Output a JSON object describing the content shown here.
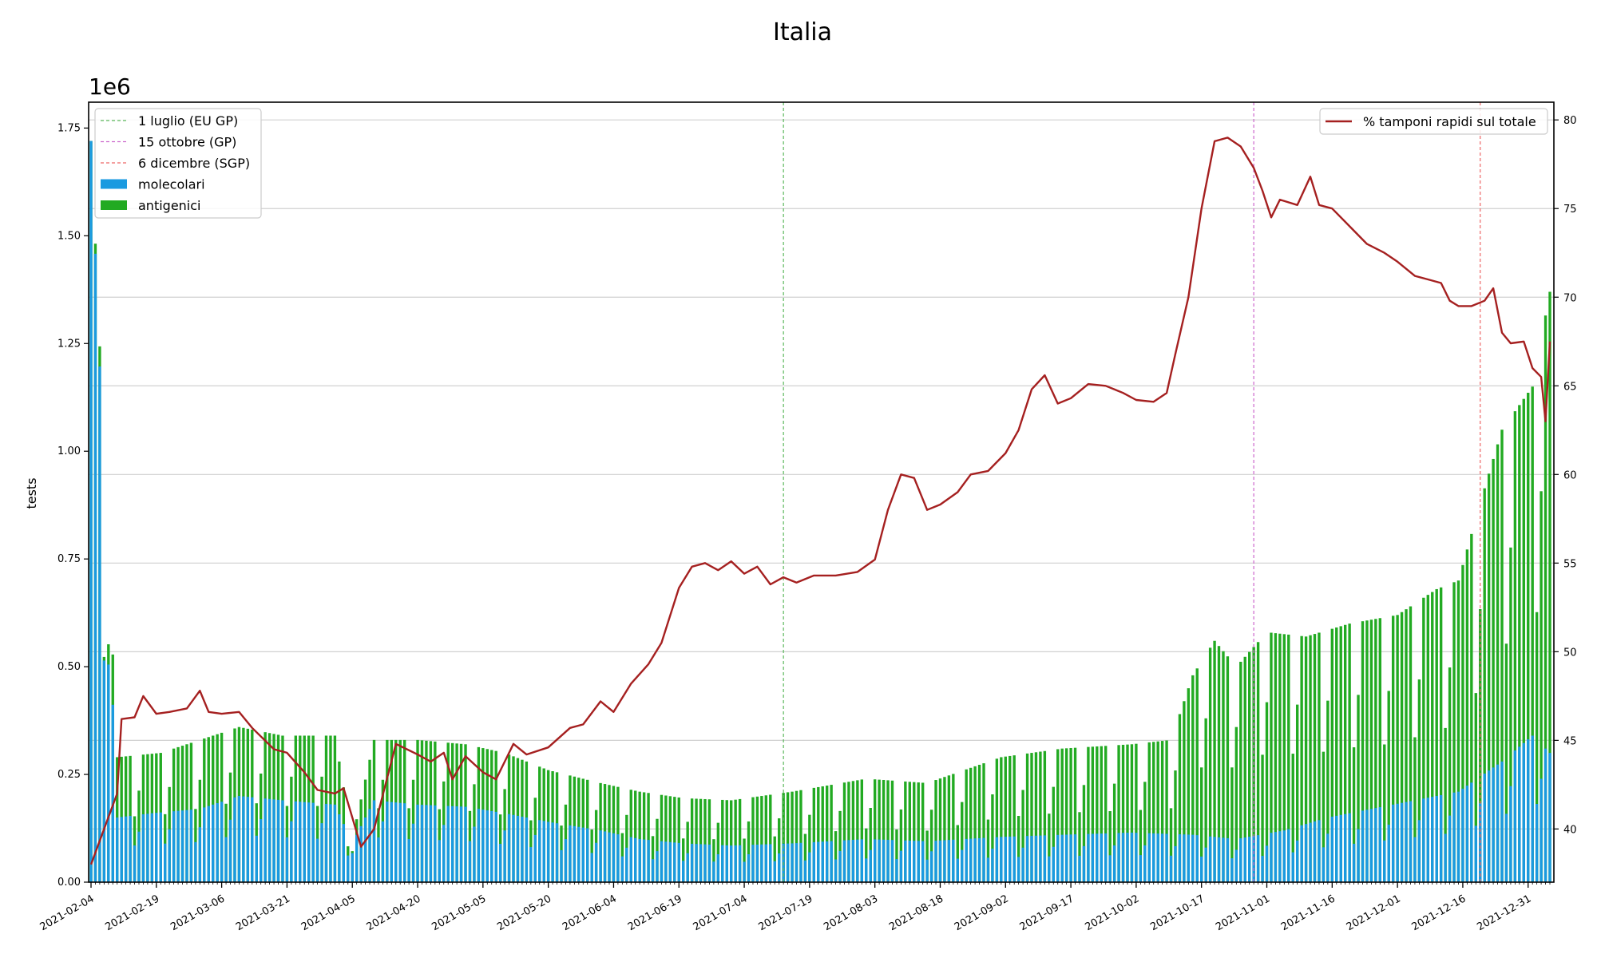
{
  "chart_data": {
    "type": "bar",
    "title": "Italia",
    "ylabel": "tests",
    "y_offset_text": "1e6",
    "ylim": [
      0,
      1810000
    ],
    "y_ticks": [
      0,
      250000,
      500000,
      750000,
      1000000,
      1250000,
      1500000,
      1750000
    ],
    "y_tick_labels": [
      "0.00",
      "0.25",
      "0.50",
      "0.75",
      "1.00",
      "1.25",
      "1.50",
      "1.75"
    ],
    "y2lim": [
      37,
      81
    ],
    "y2_ticks": [
      40,
      45,
      50,
      55,
      60,
      65,
      70,
      75,
      80
    ],
    "y2_tick_labels": [
      "40",
      "45",
      "50",
      "55",
      "60",
      "65",
      "70",
      "75",
      "80"
    ],
    "x_start": "2021-02-04",
    "x_end": "2022-01-05",
    "x_tick_labels": [
      "2021-02-04",
      "2021-02-19",
      "2021-03-06",
      "2021-03-21",
      "2021-04-05",
      "2021-04-20",
      "2021-05-05",
      "2021-05-20",
      "2021-06-04",
      "2021-06-19",
      "2021-07-04",
      "2021-07-19",
      "2021-08-03",
      "2021-08-18",
      "2021-09-02",
      "2021-09-17",
      "2021-10-02",
      "2021-10-17",
      "2021-11-01",
      "2021-11-16",
      "2021-12-01",
      "2021-12-16",
      "2021-12-31"
    ],
    "grid": true,
    "left_legend_position": "upper-left",
    "right_legend_position": "upper-right",
    "vlines": [
      {
        "label": "1 luglio (EU GP)",
        "date": "2021-07-13",
        "color": "#5cb85c"
      },
      {
        "label": "15 ottobre (GP)",
        "date": "2021-10-29",
        "color": "#cc66cc"
      },
      {
        "label": "6 dicembre (SGP)",
        "date": "2021-12-20",
        "color": "#ee6666"
      }
    ],
    "series": [
      {
        "name": "molecolari",
        "type": "bar",
        "color": "#1a9ae0",
        "axis": "left",
        "points": [
          [
            "2021-02-04",
            1720000
          ],
          [
            "2021-02-10",
            150000
          ],
          [
            "2021-02-18",
            160000
          ],
          [
            "2021-03-01",
            170000
          ],
          [
            "2021-03-10",
            200000
          ],
          [
            "2021-03-20",
            190000
          ],
          [
            "2021-04-01",
            180000
          ],
          [
            "2021-04-05",
            90000
          ],
          [
            "2021-04-10",
            190000
          ],
          [
            "2021-04-20",
            180000
          ],
          [
            "2021-05-01",
            175000
          ],
          [
            "2021-05-10",
            160000
          ],
          [
            "2021-05-20",
            140000
          ],
          [
            "2021-06-01",
            120000
          ],
          [
            "2021-06-10",
            100000
          ],
          [
            "2021-06-20",
            90000
          ],
          [
            "2021-07-01",
            85000
          ],
          [
            "2021-07-15",
            90000
          ],
          [
            "2021-08-01",
            100000
          ],
          [
            "2021-08-15",
            95000
          ],
          [
            "2021-09-01",
            105000
          ],
          [
            "2021-09-15",
            110000
          ],
          [
            "2021-10-01",
            115000
          ],
          [
            "2021-10-15",
            110000
          ],
          [
            "2021-10-25",
            100000
          ],
          [
            "2021-11-05",
            120000
          ],
          [
            "2021-11-15",
            150000
          ],
          [
            "2021-11-25",
            170000
          ],
          [
            "2021-12-05",
            190000
          ],
          [
            "2021-12-15",
            210000
          ],
          [
            "2021-12-25",
            280000
          ],
          [
            "2022-01-01",
            340000
          ],
          [
            "2022-01-05",
            300000
          ]
        ]
      },
      {
        "name": "antigenici",
        "type": "bar",
        "color": "#22aa22",
        "axis": "left",
        "points": [
          [
            "2021-02-04",
            1720000
          ],
          [
            "2021-02-10",
            290000
          ],
          [
            "2021-02-20",
            300000
          ],
          [
            "2021-03-01",
            330000
          ],
          [
            "2021-03-10",
            360000
          ],
          [
            "2021-03-20",
            340000
          ],
          [
            "2021-04-01",
            340000
          ],
          [
            "2021-04-05",
            100000
          ],
          [
            "2021-04-10",
            330000
          ],
          [
            "2021-04-20",
            330000
          ],
          [
            "2021-05-01",
            320000
          ],
          [
            "2021-05-10",
            300000
          ],
          [
            "2021-05-20",
            260000
          ],
          [
            "2021-06-01",
            230000
          ],
          [
            "2021-06-10",
            210000
          ],
          [
            "2021-06-20",
            195000
          ],
          [
            "2021-07-01",
            190000
          ],
          [
            "2021-07-15",
            210000
          ],
          [
            "2021-08-01",
            240000
          ],
          [
            "2021-08-15",
            230000
          ],
          [
            "2021-09-01",
            290000
          ],
          [
            "2021-09-15",
            310000
          ],
          [
            "2021-10-01",
            320000
          ],
          [
            "2021-10-10",
            330000
          ],
          [
            "2021-10-15",
            480000
          ],
          [
            "2021-10-20",
            560000
          ],
          [
            "2021-10-25",
            500000
          ],
          [
            "2021-11-01",
            580000
          ],
          [
            "2021-11-10",
            570000
          ],
          [
            "2021-11-20",
            600000
          ],
          [
            "2021-12-01",
            620000
          ],
          [
            "2021-12-10",
            680000
          ],
          [
            "2021-12-15",
            700000
          ],
          [
            "2021-12-20",
            880000
          ],
          [
            "2021-12-25",
            1050000
          ],
          [
            "2022-01-01",
            1150000
          ],
          [
            "2022-01-05",
            1370000
          ]
        ]
      },
      {
        "name": "% tamponi rapidi sul totale",
        "type": "line",
        "color": "#a52020",
        "axis": "right",
        "points": [
          [
            "2021-02-04",
            38
          ],
          [
            "2021-02-10",
            42
          ],
          [
            "2021-02-11",
            46.2
          ],
          [
            "2021-02-14",
            46.3
          ],
          [
            "2021-02-16",
            47.5
          ],
          [
            "2021-02-19",
            46.5
          ],
          [
            "2021-02-22",
            46.6
          ],
          [
            "2021-02-26",
            46.8
          ],
          [
            "2021-03-01",
            47.8
          ],
          [
            "2021-03-03",
            46.6
          ],
          [
            "2021-03-06",
            46.5
          ],
          [
            "2021-03-10",
            46.6
          ],
          [
            "2021-03-13",
            45.7
          ],
          [
            "2021-03-18",
            44.5
          ],
          [
            "2021-03-21",
            44.3
          ],
          [
            "2021-03-25",
            43.2
          ],
          [
            "2021-03-28",
            42.2
          ],
          [
            "2021-04-01",
            42
          ],
          [
            "2021-04-03",
            42.3
          ],
          [
            "2021-04-07",
            39
          ],
          [
            "2021-04-10",
            40
          ],
          [
            "2021-04-15",
            44.8
          ],
          [
            "2021-04-20",
            44.2
          ],
          [
            "2021-04-23",
            43.8
          ],
          [
            "2021-04-26",
            44.3
          ],
          [
            "2021-04-28",
            42.8
          ],
          [
            "2021-05-01",
            44.1
          ],
          [
            "2021-05-05",
            43.2
          ],
          [
            "2021-05-08",
            42.8
          ],
          [
            "2021-05-12",
            44.8
          ],
          [
            "2021-05-15",
            44.2
          ],
          [
            "2021-05-20",
            44.6
          ],
          [
            "2021-05-25",
            45.7
          ],
          [
            "2021-05-28",
            45.9
          ],
          [
            "2021-06-01",
            47.2
          ],
          [
            "2021-06-04",
            46.6
          ],
          [
            "2021-06-08",
            48.2
          ],
          [
            "2021-06-12",
            49.3
          ],
          [
            "2021-06-15",
            50.5
          ],
          [
            "2021-06-19",
            53.6
          ],
          [
            "2021-06-22",
            54.8
          ],
          [
            "2021-06-25",
            55
          ],
          [
            "2021-06-28",
            54.6
          ],
          [
            "2021-07-01",
            55.1
          ],
          [
            "2021-07-04",
            54.4
          ],
          [
            "2021-07-07",
            54.8
          ],
          [
            "2021-07-10",
            53.8
          ],
          [
            "2021-07-13",
            54.2
          ],
          [
            "2021-07-16",
            53.9
          ],
          [
            "2021-07-20",
            54.3
          ],
          [
            "2021-07-25",
            54.3
          ],
          [
            "2021-07-30",
            54.5
          ],
          [
            "2021-08-03",
            55.2
          ],
          [
            "2021-08-06",
            58
          ],
          [
            "2021-08-09",
            60
          ],
          [
            "2021-08-12",
            59.8
          ],
          [
            "2021-08-15",
            58
          ],
          [
            "2021-08-18",
            58.3
          ],
          [
            "2021-08-22",
            59
          ],
          [
            "2021-08-25",
            60
          ],
          [
            "2021-08-29",
            60.2
          ],
          [
            "2021-09-02",
            61.2
          ],
          [
            "2021-09-05",
            62.5
          ],
          [
            "2021-09-08",
            64.8
          ],
          [
            "2021-09-11",
            65.6
          ],
          [
            "2021-09-14",
            64
          ],
          [
            "2021-09-17",
            64.3
          ],
          [
            "2021-09-21",
            65.1
          ],
          [
            "2021-09-25",
            65
          ],
          [
            "2021-09-29",
            64.6
          ],
          [
            "2021-10-02",
            64.2
          ],
          [
            "2021-10-06",
            64.1
          ],
          [
            "2021-10-09",
            64.6
          ],
          [
            "2021-10-11",
            66.8
          ],
          [
            "2021-10-14",
            70
          ],
          [
            "2021-10-17",
            75
          ],
          [
            "2021-10-20",
            78.8
          ],
          [
            "2021-10-23",
            79
          ],
          [
            "2021-10-26",
            78.5
          ],
          [
            "2021-10-29",
            77.3
          ],
          [
            "2021-10-31",
            76
          ],
          [
            "2021-11-02",
            74.5
          ],
          [
            "2021-11-04",
            75.5
          ],
          [
            "2021-11-08",
            75.2
          ],
          [
            "2021-11-11",
            76.8
          ],
          [
            "2021-11-13",
            75.2
          ],
          [
            "2021-11-16",
            75
          ],
          [
            "2021-11-20",
            74
          ],
          [
            "2021-11-24",
            73
          ],
          [
            "2021-11-28",
            72.5
          ],
          [
            "2021-12-01",
            72
          ],
          [
            "2021-12-05",
            71.2
          ],
          [
            "2021-12-08",
            71
          ],
          [
            "2021-12-11",
            70.8
          ],
          [
            "2021-12-13",
            69.8
          ],
          [
            "2021-12-15",
            69.5
          ],
          [
            "2021-12-18",
            69.5
          ],
          [
            "2021-12-21",
            69.8
          ],
          [
            "2021-12-23",
            70.5
          ],
          [
            "2021-12-25",
            68
          ],
          [
            "2021-12-27",
            67.4
          ],
          [
            "2021-12-30",
            67.5
          ],
          [
            "2022-01-01",
            66
          ],
          [
            "2022-01-03",
            65.5
          ],
          [
            "2022-01-04",
            63
          ],
          [
            "2022-01-05",
            67.5
          ]
        ]
      }
    ]
  }
}
